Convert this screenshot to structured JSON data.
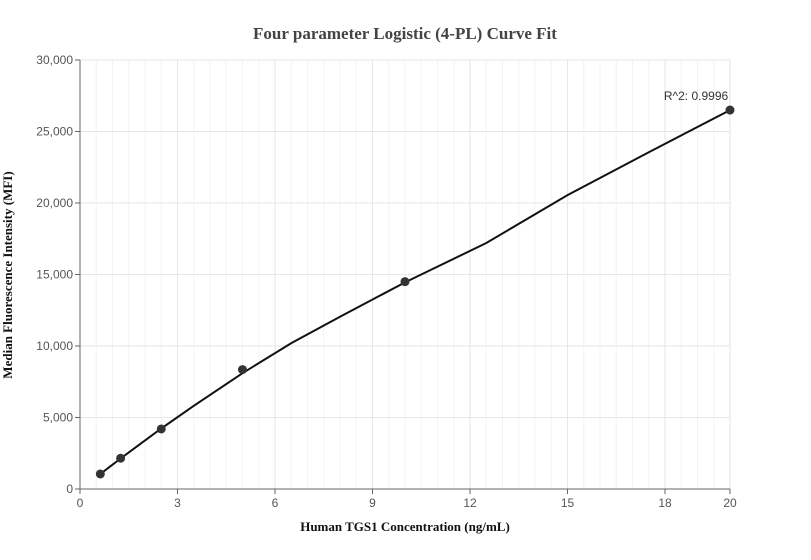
{
  "chart_data": {
    "type": "scatter",
    "title": "Four parameter Logistic (4-PL) Curve Fit",
    "xlabel": "Human TGS1 Concentration  (ng/mL)",
    "ylabel": "Median Fluorescence Intensity (MFI)",
    "xlim": [
      0,
      20
    ],
    "ylim": [
      0,
      30000
    ],
    "x_ticks": [
      0,
      3,
      6,
      9,
      12,
      15,
      18,
      20
    ],
    "x_tick_labels": [
      "0",
      "3",
      "6",
      "9",
      "12",
      "15",
      "18",
      "20"
    ],
    "y_ticks": [
      0,
      5000,
      10000,
      15000,
      20000,
      25000,
      30000
    ],
    "y_tick_labels": [
      "0",
      "5,000",
      "10,000",
      "15,000",
      "20,000",
      "25,000",
      "30,000"
    ],
    "grid": true,
    "series": [
      {
        "points": [
          {
            "x": 0.625,
            "y": 1050
          },
          {
            "x": 1.25,
            "y": 2150
          },
          {
            "x": 2.5,
            "y": 4200
          },
          {
            "x": 5,
            "y": 8350
          },
          {
            "x": 10,
            "y": 14500
          },
          {
            "x": 20,
            "y": 26500
          }
        ]
      }
    ],
    "fit_curve": {
      "x": [
        0.625,
        1,
        1.25,
        1.75,
        2.5,
        3.5,
        5,
        6.5,
        8,
        10,
        12.5,
        15,
        17.5,
        20
      ],
      "y": [
        1050,
        1700,
        2130,
        2980,
        4230,
        5820,
        8100,
        10200,
        12050,
        14450,
        17200,
        20550,
        23550,
        26500
      ]
    },
    "annotations": [
      {
        "text": "R^2: 0.9996",
        "x": 20,
        "y": 26500
      }
    ],
    "colors": {
      "marker": "#333333",
      "curve": "#111111",
      "grid_major": "#e6e6e6",
      "grid_minor": "#f3f3f3",
      "axis": "#666666"
    }
  }
}
